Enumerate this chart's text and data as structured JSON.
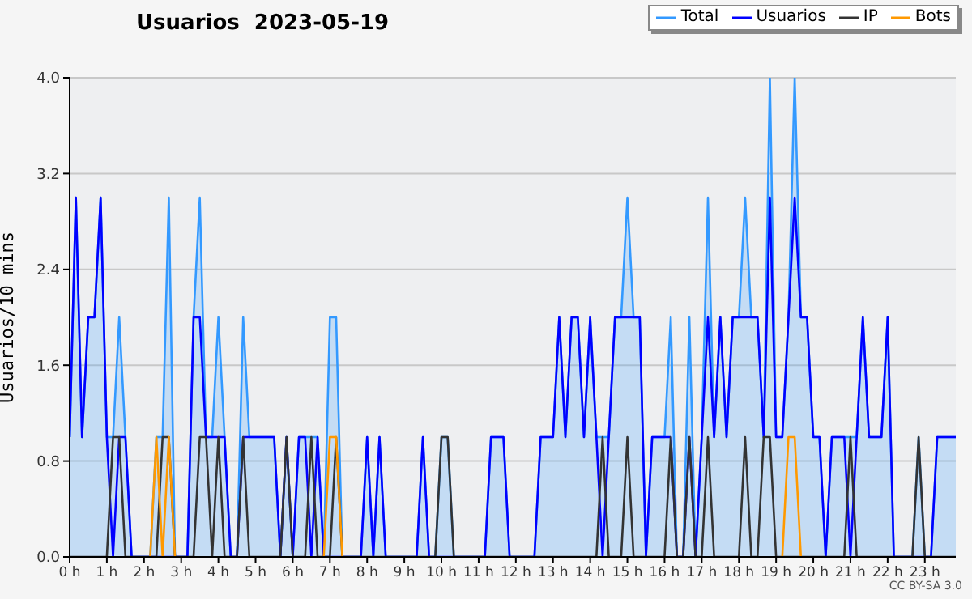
{
  "chart_data": {
    "type": "line",
    "title": "Usuarios  2023-05-19",
    "ylabel": "Usuarios/10 mins",
    "annotations": [
      "CC BY-SA 3.0"
    ],
    "x": [
      0,
      0.167,
      0.333,
      0.5,
      0.667,
      0.833,
      1,
      1.167,
      1.333,
      1.5,
      1.667,
      1.833,
      2,
      2.167,
      2.333,
      2.5,
      2.667,
      2.833,
      3,
      3.167,
      3.333,
      3.5,
      3.667,
      3.833,
      4,
      4.167,
      4.333,
      4.5,
      4.667,
      4.833,
      5,
      5.167,
      5.333,
      5.5,
      5.667,
      5.833,
      6,
      6.167,
      6.333,
      6.5,
      6.667,
      6.833,
      7,
      7.167,
      7.333,
      7.5,
      7.667,
      7.833,
      8,
      8.167,
      8.333,
      8.5,
      8.667,
      8.833,
      9,
      9.167,
      9.333,
      9.5,
      9.667,
      9.833,
      10,
      10.167,
      10.333,
      10.5,
      10.667,
      10.833,
      11,
      11.167,
      11.333,
      11.5,
      11.667,
      11.833,
      12,
      12.167,
      12.333,
      12.5,
      12.667,
      12.833,
      13,
      13.167,
      13.333,
      13.5,
      13.667,
      13.833,
      14,
      14.167,
      14.333,
      14.5,
      14.667,
      14.833,
      15,
      15.167,
      15.333,
      15.5,
      15.667,
      15.833,
      16,
      16.167,
      16.333,
      16.5,
      16.667,
      16.833,
      17,
      17.167,
      17.333,
      17.5,
      17.667,
      17.833,
      18,
      18.167,
      18.333,
      18.5,
      18.667,
      18.833,
      19,
      19.167,
      19.333,
      19.5,
      19.667,
      19.833,
      20,
      20.167,
      20.333,
      20.5,
      20.667,
      20.833,
      21,
      21.167,
      21.333,
      21.5,
      21.667,
      21.833,
      22,
      22.167,
      22.333,
      22.5,
      22.667,
      22.833,
      23,
      23.167,
      23.333,
      23.5,
      23.667,
      23.833
    ],
    "series": [
      {
        "name": "Total",
        "type": "area",
        "color": "#3399ff",
        "values": [
          1,
          3,
          1,
          2,
          2,
          3,
          1,
          1,
          2,
          1,
          0,
          0,
          0,
          0,
          1,
          1,
          3,
          0,
          0,
          0,
          2,
          3,
          1,
          1,
          2,
          1,
          0,
          0,
          2,
          1,
          1,
          1,
          1,
          1,
          0,
          1,
          0,
          1,
          1,
          1,
          1,
          0,
          2,
          2,
          0,
          0,
          0,
          0,
          1,
          0,
          1,
          0,
          0,
          0,
          0,
          0,
          0,
          1,
          0,
          0,
          1,
          1,
          0,
          0,
          0,
          0,
          0,
          0,
          1,
          1,
          1,
          0,
          0,
          0,
          0,
          0,
          1,
          1,
          1,
          2,
          1,
          2,
          2,
          1,
          2,
          1,
          1,
          1,
          2,
          2,
          3,
          2,
          2,
          0,
          1,
          1,
          1,
          2,
          0,
          0,
          2,
          0,
          1,
          3,
          1,
          2,
          1,
          2,
          2,
          3,
          2,
          2,
          1,
          4,
          1,
          1,
          2,
          4,
          2,
          2,
          1,
          1,
          0,
          1,
          1,
          1,
          1,
          1,
          2,
          1,
          1,
          1,
          2,
          0,
          0,
          0,
          0,
          1,
          0,
          0,
          1,
          1,
          1,
          1
        ]
      },
      {
        "name": "Usuarios",
        "color": "#0000ff",
        "values": [
          1,
          3,
          1,
          2,
          2,
          3,
          1,
          0,
          1,
          1,
          0,
          0,
          0,
          0,
          0,
          0,
          0,
          0,
          0,
          0,
          2,
          2,
          1,
          1,
          1,
          1,
          0,
          0,
          1,
          1,
          1,
          1,
          1,
          1,
          0,
          1,
          0,
          1,
          1,
          0,
          1,
          0,
          0,
          0,
          0,
          0,
          0,
          0,
          1,
          0,
          1,
          0,
          0,
          0,
          0,
          0,
          0,
          1,
          0,
          0,
          0,
          0,
          0,
          0,
          0,
          0,
          0,
          0,
          1,
          1,
          1,
          0,
          0,
          0,
          0,
          0,
          1,
          1,
          1,
          2,
          1,
          2,
          2,
          1,
          2,
          1,
          0,
          1,
          2,
          2,
          2,
          2,
          2,
          0,
          1,
          1,
          1,
          1,
          0,
          0,
          1,
          0,
          1,
          2,
          1,
          2,
          1,
          2,
          2,
          2,
          2,
          2,
          1,
          3,
          1,
          1,
          2,
          3,
          2,
          2,
          1,
          1,
          0,
          1,
          1,
          1,
          0,
          1,
          2,
          1,
          1,
          1,
          2,
          0,
          0,
          0,
          0,
          0,
          0,
          0,
          1,
          1,
          1,
          1
        ]
      },
      {
        "name": "IP",
        "color": "#333333",
        "values": [
          0,
          0,
          0,
          0,
          0,
          0,
          0,
          1,
          1,
          0,
          0,
          0,
          0,
          0,
          0,
          1,
          1,
          0,
          0,
          0,
          0,
          1,
          1,
          0,
          1,
          0,
          0,
          0,
          1,
          0,
          0,
          0,
          0,
          0,
          0,
          1,
          0,
          0,
          0,
          1,
          0,
          0,
          0,
          1,
          0,
          0,
          0,
          0,
          0,
          0,
          0,
          0,
          0,
          0,
          0,
          0,
          0,
          0,
          0,
          0,
          1,
          1,
          0,
          0,
          0,
          0,
          0,
          0,
          0,
          0,
          0,
          0,
          0,
          0,
          0,
          0,
          0,
          0,
          0,
          0,
          0,
          0,
          0,
          0,
          0,
          0,
          1,
          0,
          0,
          0,
          1,
          0,
          0,
          0,
          0,
          0,
          0,
          1,
          0,
          0,
          1,
          0,
          0,
          1,
          0,
          0,
          0,
          0,
          0,
          1,
          0,
          0,
          1,
          1,
          0,
          0,
          0,
          0,
          0,
          0,
          0,
          0,
          0,
          0,
          0,
          0,
          1,
          0,
          0,
          0,
          0,
          0,
          0,
          0,
          0,
          0,
          0,
          1,
          0,
          0,
          0,
          0,
          0,
          0
        ]
      },
      {
        "name": "Bots",
        "color": "#ff9900",
        "values": [
          null,
          null,
          null,
          null,
          null,
          null,
          null,
          null,
          null,
          null,
          null,
          null,
          null,
          0,
          1,
          0,
          1,
          0,
          null,
          null,
          null,
          null,
          null,
          null,
          null,
          null,
          null,
          null,
          null,
          null,
          null,
          null,
          null,
          null,
          null,
          null,
          null,
          null,
          null,
          null,
          null,
          0,
          1,
          1,
          0,
          null,
          null,
          null,
          null,
          null,
          null,
          null,
          null,
          null,
          null,
          null,
          null,
          null,
          null,
          null,
          null,
          null,
          null,
          null,
          null,
          null,
          null,
          null,
          null,
          null,
          null,
          null,
          null,
          null,
          null,
          null,
          null,
          null,
          null,
          null,
          null,
          null,
          null,
          null,
          null,
          null,
          null,
          null,
          null,
          null,
          null,
          null,
          null,
          null,
          null,
          null,
          null,
          null,
          null,
          null,
          null,
          null,
          null,
          null,
          null,
          null,
          null,
          null,
          null,
          null,
          null,
          null,
          null,
          null,
          null,
          0,
          1,
          1,
          0,
          null,
          null,
          null,
          null,
          null,
          null,
          null,
          null,
          null,
          null,
          null,
          null,
          null,
          null,
          null,
          null,
          null,
          null,
          null,
          null,
          null,
          null,
          null,
          null,
          null
        ]
      }
    ],
    "xlim": [
      0,
      23.833
    ],
    "xticks": [
      {
        "value": 0,
        "label": "0 h"
      },
      {
        "value": 1,
        "label": "1 h"
      },
      {
        "value": 2,
        "label": "2 h"
      },
      {
        "value": 3,
        "label": "3 h"
      },
      {
        "value": 4,
        "label": "4 h"
      },
      {
        "value": 5,
        "label": "5 h"
      },
      {
        "value": 6,
        "label": "6 h"
      },
      {
        "value": 7,
        "label": "7 h"
      },
      {
        "value": 8,
        "label": "8 h"
      },
      {
        "value": 9,
        "label": "9 h"
      },
      {
        "value": 10,
        "label": "10 h"
      },
      {
        "value": 11,
        "label": "11 h"
      },
      {
        "value": 12,
        "label": "12 h"
      },
      {
        "value": 13,
        "label": "13 h"
      },
      {
        "value": 14,
        "label": "14 h"
      },
      {
        "value": 15,
        "label": "15 h"
      },
      {
        "value": 16,
        "label": "16 h"
      },
      {
        "value": 17,
        "label": "17 h"
      },
      {
        "value": 18,
        "label": "18 h"
      },
      {
        "value": 19,
        "label": "19 h"
      },
      {
        "value": 20,
        "label": "20 h"
      },
      {
        "value": 21,
        "label": "21 h"
      },
      {
        "value": 22,
        "label": "22 h"
      },
      {
        "value": 23,
        "label": "23 h"
      }
    ],
    "ylim": [
      0,
      4
    ],
    "yticks": [
      {
        "value": 0,
        "label": "0.0"
      },
      {
        "value": 0.8,
        "label": "0.8"
      },
      {
        "value": 1.6,
        "label": "1.6"
      },
      {
        "value": 2.4,
        "label": "2.4"
      },
      {
        "value": 3.2,
        "label": "3.2"
      },
      {
        "value": 4,
        "label": "4.0"
      }
    ],
    "grid": "y",
    "legend": "top right",
    "marker": "none",
    "line_style": "solid"
  }
}
